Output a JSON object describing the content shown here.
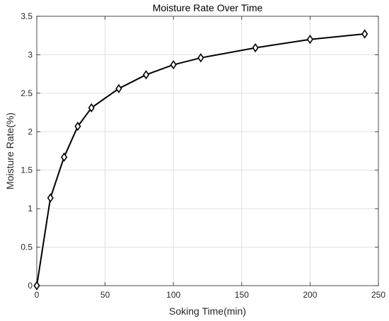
{
  "chart_data": {
    "type": "line",
    "title": "Moisture Rate Over Time",
    "xlabel": "Soking Time(min)",
    "ylabel": "Moisture Rate(%)",
    "xlim": [
      0,
      250
    ],
    "ylim": [
      0,
      3.5
    ],
    "xticks": [
      0,
      50,
      100,
      150,
      200,
      250
    ],
    "yticks": [
      0,
      0.5,
      1,
      1.5,
      2,
      2.5,
      3,
      3.5
    ],
    "xtick_labels": [
      "0",
      "50",
      "100",
      "150",
      "200",
      "250"
    ],
    "ytick_labels": [
      "0",
      "0.5",
      "1",
      "1.5",
      "2",
      "2.5",
      "3",
      "3.5"
    ],
    "grid": true,
    "marker": "diamond",
    "series": [
      {
        "x": [
          0,
          10,
          20,
          30,
          40,
          60,
          80,
          100,
          120,
          160,
          200,
          240
        ],
        "y": [
          0,
          1.14,
          1.67,
          2.07,
          2.31,
          2.56,
          2.74,
          2.87,
          2.96,
          3.09,
          3.2,
          3.27
        ],
        "color": "#000000"
      }
    ]
  }
}
